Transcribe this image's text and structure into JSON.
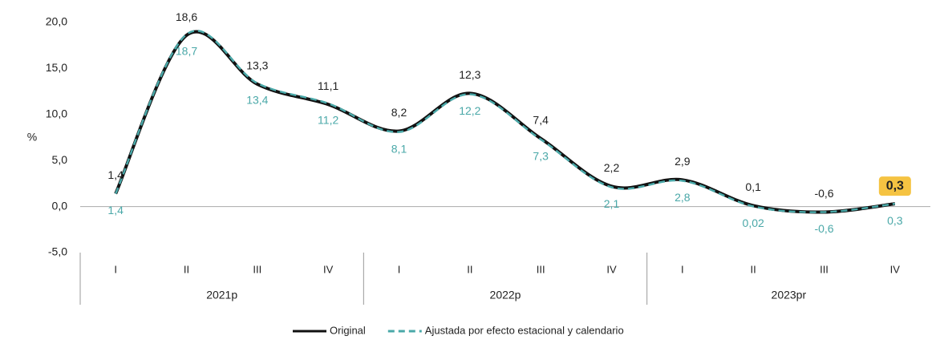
{
  "chart_data": {
    "type": "line",
    "ylabel": "%",
    "categories": [
      "I",
      "II",
      "III",
      "IV",
      "I",
      "II",
      "III",
      "IV",
      "I",
      "II",
      "III",
      "IV"
    ],
    "category_groups": [
      "2021p",
      "2022p",
      "2023pr"
    ],
    "series": [
      {
        "name": "Original",
        "color": "#111111",
        "style": "solid",
        "values": [
          1.4,
          18.6,
          13.3,
          11.1,
          8.2,
          12.3,
          7.4,
          2.2,
          2.9,
          0.1,
          -0.6,
          0.3
        ],
        "value_labels": [
          "1,4",
          "18,6",
          "13,3",
          "11,1",
          "8,2",
          "12,3",
          "7,4",
          "2,2",
          "2,9",
          "0,1",
          "-0,6",
          "0,3"
        ]
      },
      {
        "name": "Ajustada por efecto estacional y calendario",
        "color": "#4aa8a8",
        "style": "dashed",
        "values": [
          1.4,
          18.7,
          13.4,
          11.2,
          8.1,
          12.2,
          7.3,
          2.1,
          2.8,
          0.02,
          -0.6,
          0.3
        ],
        "value_labels": [
          "1,4",
          "18,7",
          "13,4",
          "11,2",
          "8,1",
          "12,2",
          "7,3",
          "2,1",
          "2,8",
          "0,02",
          "-0,6",
          "0,3"
        ]
      }
    ],
    "ylim": [
      -5,
      20
    ],
    "yticks": [
      {
        "value": -5,
        "label": "-5,0"
      },
      {
        "value": 0,
        "label": "0,0"
      },
      {
        "value": 5,
        "label": "5,0"
      },
      {
        "value": 10,
        "label": "10,0"
      },
      {
        "value": 15,
        "label": "15,0"
      },
      {
        "value": 20,
        "label": "20,0"
      }
    ],
    "highlight": {
      "series": 0,
      "index": 11,
      "color": "#f5c342"
    },
    "legend": "bottom"
  }
}
